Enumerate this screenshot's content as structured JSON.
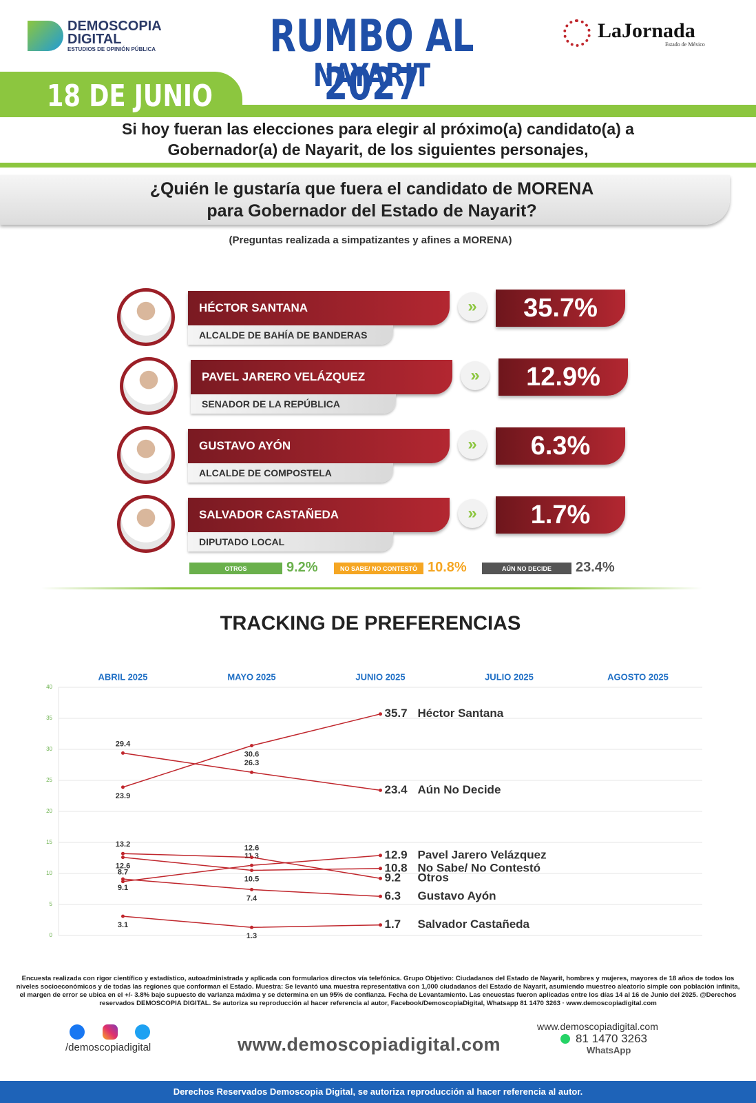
{
  "header": {
    "brand_line1": "DEMOSCOPIA",
    "brand_line2": "DIGITAL",
    "brand_tagline": "ESTUDIOS DE OPINIÓN PÚBLICA",
    "title": "RUMBO AL 2027",
    "subtitle": "NAYARIT",
    "date": "18 DE JUNIO",
    "partner": "LaJornada",
    "partner_sub": "Estado de México"
  },
  "intro": [
    "Si hoy fueran las elecciones para elegir al próximo(a) candidato(a) a",
    "Gobernador(a) de Nayarit, de los siguientes personajes,"
  ],
  "question": [
    "¿Quién le gustaría que fuera el candidato de MORENA",
    "para Gobernador del Estado de Nayarit?"
  ],
  "note": "(Preguntas realizada a simpatizantes y afines a MORENA)",
  "candidates": [
    {
      "name": "HÉCTOR SANTANA",
      "role": "ALCALDE DE BAHÍA DE BANDERAS",
      "percent": "35.7%"
    },
    {
      "name": "PAVEL JARERO VELÁZQUEZ",
      "role": "SENADOR DE LA REPÚBLICA",
      "percent": "12.9%"
    },
    {
      "name": "GUSTAVO AYÓN",
      "role": "ALCALDE DE COMPOSTELA",
      "percent": "6.3%"
    },
    {
      "name": "SALVADOR CASTAÑEDA",
      "role": "DIPUTADO LOCAL",
      "percent": "1.7%"
    }
  ],
  "others": [
    {
      "label": "OTROS",
      "percent": "9.2%",
      "color": "#6ab04c"
    },
    {
      "label": "NO SABE/ NO CONTESTÓ",
      "percent": "10.8%",
      "color": "#f5a623"
    },
    {
      "label": "AÚN NO DECIDE",
      "percent": "23.4%",
      "color": "#555555"
    }
  ],
  "chart_data": {
    "type": "line",
    "title": "TRACKING DE PREFERENCIAS",
    "categories": [
      "ABRIL 2025",
      "MAYO 2025",
      "JUNIO 2025",
      "JULIO 2025",
      "AGOSTO 2025"
    ],
    "ylim": [
      0,
      40
    ],
    "yticks": [
      0,
      5,
      10,
      15,
      20,
      25,
      30,
      35,
      40
    ],
    "grid": true,
    "series": [
      {
        "name": "Héctor Santana",
        "color": "#c0272d",
        "values": [
          23.9,
          30.6,
          35.7,
          null,
          null
        ]
      },
      {
        "name": "Aún No Decide",
        "color": "#c0272d",
        "values": [
          29.4,
          26.3,
          23.4,
          null,
          null
        ]
      },
      {
        "name": "Pavel Jarero Velázquez",
        "color": "#c0272d",
        "values": [
          8.7,
          11.3,
          12.9,
          null,
          null
        ]
      },
      {
        "name": "No Sabe/ No Contestó",
        "color": "#c0272d",
        "values": [
          12.6,
          10.5,
          10.8,
          null,
          null
        ]
      },
      {
        "name": "Otros",
        "color": "#c0272d",
        "values": [
          13.2,
          12.6,
          9.2,
          null,
          null
        ]
      },
      {
        "name": "Gustavo Ayón",
        "color": "#c0272d",
        "values": [
          9.1,
          7.4,
          6.3,
          null,
          null
        ]
      },
      {
        "name": "Salvador Castañeda",
        "color": "#c0272d",
        "values": [
          3.1,
          1.3,
          1.7,
          null,
          null
        ]
      }
    ]
  },
  "footer": {
    "methodology": "Encuesta realizada con rigor científico y estadístico, autoadministrada y aplicada con formularios directos vía telefónica. Grupo Objetivo: Ciudadanos del Estado de Nayarit, hombres y mujeres, mayores de 18 años de todos los niveles socioeconómicos y de todas las regiones que conforman el Estado. Muestra: Se levantó una muestra representativa con 1,000 ciudadanos del Estado de Nayarit, asumiendo muestreo aleatorio simple con población infinita, el margen de error se ubica en el +/- 3.8% bajo supuesto de varianza máxima y se determina en un 95% de confianza. Fecha de Levantamiento. Las encuestas fueron aplicadas entre los días 14 al 16 de Junio del 2025. @Derechos reservados DEMOSCOPIA DIGITAL. Se autoriza su reproducción al hacer referencia al autor, Facebook/DemoscopiaDigital, Whatsapp 81 1470 3263 · www.demoscopiadigital.com",
    "social": "/demoscopiadigital",
    "website": "www.demoscopiadigital.com",
    "website_small": "www.demoscopiadigital.com",
    "phone": "81 1470 3263",
    "phone_label": "WhatsApp",
    "rights": "Derechos Reservados Demoscopia Digital, se autoriza reproducción al hacer referencia al autor."
  }
}
